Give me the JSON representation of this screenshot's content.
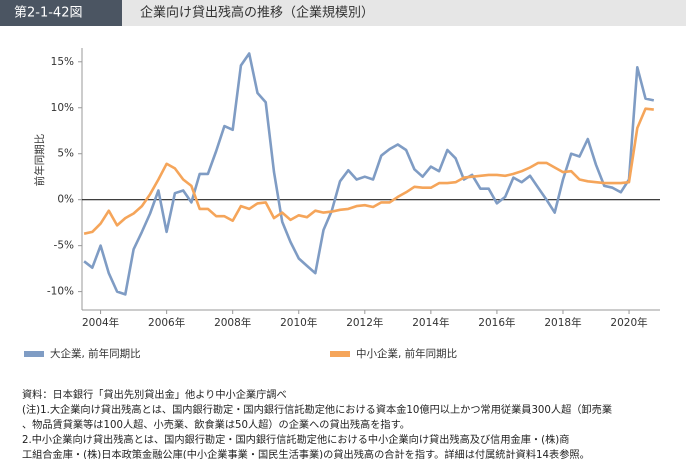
{
  "header": {
    "figure_number": "第2-1-42図",
    "title": "企業向け貸出残高の推移（企業規模別）"
  },
  "chart_data": {
    "type": "line",
    "y_label": "前年同期比",
    "categories": [
      null,
      null,
      "2004年",
      null,
      null,
      null,
      null,
      null,
      null,
      null,
      "2006年",
      null,
      null,
      null,
      null,
      null,
      null,
      null,
      "2008年",
      null,
      null,
      null,
      null,
      null,
      null,
      null,
      "2010年",
      null,
      null,
      null,
      null,
      null,
      null,
      null,
      "2012年",
      null,
      null,
      null,
      null,
      null,
      null,
      null,
      "2014年",
      null,
      null,
      null,
      null,
      null,
      null,
      null,
      "2016年",
      null,
      null,
      null,
      null,
      null,
      null,
      null,
      "2018年",
      null,
      null,
      null,
      null,
      null,
      null,
      null,
      "2020年",
      null,
      null,
      null
    ],
    "series": [
      {
        "name": "大企業, 前年同期比",
        "color": "#7f9cc4",
        "values": [
          -6.7,
          -7.4,
          -5.0,
          -8.0,
          -10.0,
          -10.3,
          -5.4,
          -3.5,
          -1.5,
          1.0,
          -3.5,
          0.7,
          1.0,
          -0.3,
          2.8,
          2.8,
          5.3,
          8.0,
          7.6,
          14.6,
          15.9,
          11.6,
          10.6,
          3.0,
          -2.4,
          -4.6,
          -6.4,
          -7.2,
          -8.0,
          -3.3,
          -1.2,
          2.0,
          3.2,
          2.2,
          2.5,
          2.2,
          4.8,
          5.5,
          6.0,
          5.4,
          3.3,
          2.5,
          3.6,
          3.1,
          5.4,
          4.5,
          2.2,
          2.7,
          1.2,
          1.2,
          -0.4,
          0.3,
          2.4,
          1.9,
          2.6,
          1.3,
          0.0,
          -1.4,
          2.2,
          5.0,
          4.7,
          6.6,
          3.8,
          1.5,
          1.3,
          0.8,
          2.2,
          14.4,
          11.0,
          10.8
        ]
      },
      {
        "name": "中小企業, 前年同期比",
        "color": "#f5a55a",
        "values": [
          -3.7,
          -3.5,
          -2.6,
          -1.2,
          -2.8,
          -2.0,
          -1.5,
          -0.7,
          0.6,
          2.2,
          3.9,
          3.4,
          2.2,
          1.5,
          -1.0,
          -1.0,
          -1.8,
          -1.8,
          -2.3,
          -0.7,
          -1.0,
          -0.4,
          -0.3,
          -2.0,
          -1.4,
          -2.2,
          -1.7,
          -1.9,
          -1.2,
          -1.4,
          -1.3,
          -1.1,
          -1.0,
          -0.7,
          -0.6,
          -0.8,
          -0.3,
          -0.3,
          0.3,
          0.8,
          1.4,
          1.3,
          1.3,
          1.8,
          1.8,
          1.9,
          2.4,
          2.5,
          2.6,
          2.7,
          2.7,
          2.6,
          2.8,
          3.1,
          3.5,
          4.0,
          4.0,
          3.5,
          3.0,
          3.1,
          2.2,
          2.0,
          1.9,
          1.8,
          1.8,
          1.8,
          1.9,
          7.8,
          9.9,
          9.8
        ]
      }
    ],
    "ylim": [
      -12,
      16.5
    ],
    "yticks": [
      {
        "value": -10,
        "label": "-10%"
      },
      {
        "value": -5,
        "label": "-5%"
      },
      {
        "value": 0,
        "label": "0%"
      },
      {
        "value": 5,
        "label": "5%"
      },
      {
        "value": 10,
        "label": "10%"
      },
      {
        "value": 15,
        "label": "15%"
      }
    ],
    "legend": "bottom-left"
  },
  "notes": [
    "資料：日本銀行「貸出先別貸出金」他より中小企業庁調べ",
    "(注)1.大企業向け貸出残高とは、国内銀行勘定・国内銀行信託勘定他における資本金10億円以上かつ常用従業員300人超（卸売業",
    "、物品賃貸業等は100人超、小売業、飲食業は50人超）の企業への貸出残高を指す。",
    "2.中小企業向け貸出残高とは、国内銀行勘定・国内銀行信託勘定他における中小企業向け貸出残高及び信用金庫・(株)商",
    "工組合金庫・(株)日本政策金融公庫(中小企業事業・国民生活事業)の貸出残高の合計を指す。詳細は付属統計資料14表参照。"
  ]
}
